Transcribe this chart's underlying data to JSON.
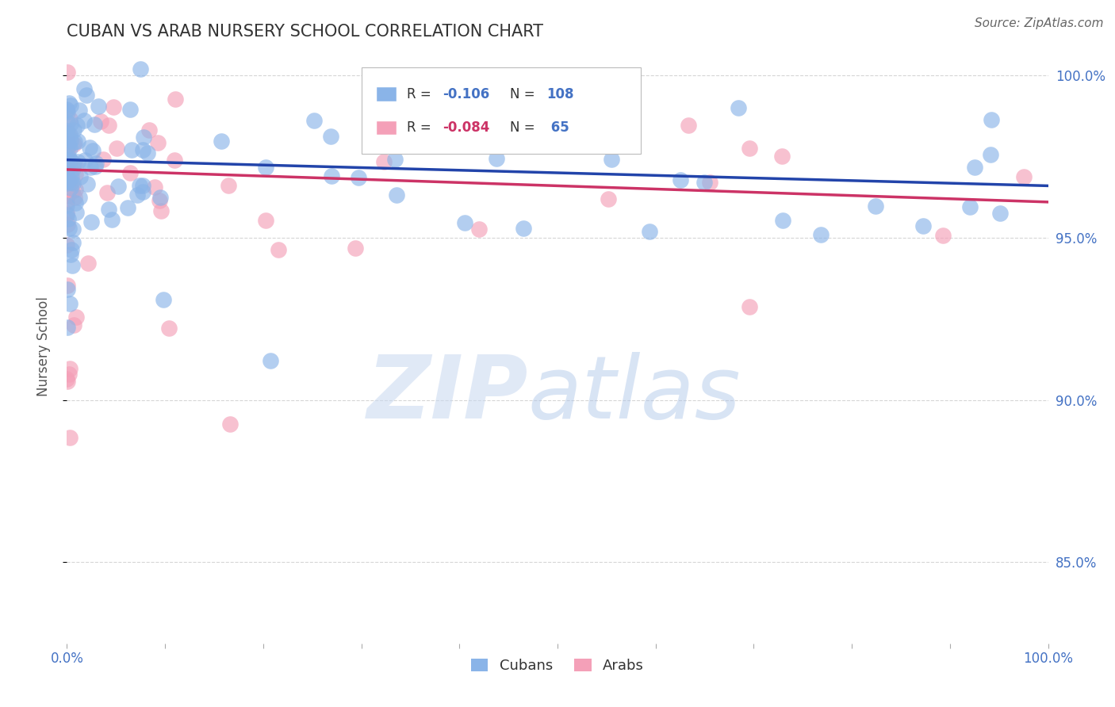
{
  "title": "CUBAN VS ARAB NURSERY SCHOOL CORRELATION CHART",
  "source": "Source: ZipAtlas.com",
  "ylabel": "Nursery School",
  "cubans_R": -0.106,
  "cubans_N": 108,
  "arabs_R": -0.084,
  "arabs_N": 65,
  "cuban_color": "#8ab4e8",
  "arab_color": "#f4a0b8",
  "cuban_line_color": "#2244aa",
  "arab_line_color": "#cc3366",
  "xmin": 0.0,
  "xmax": 1.0,
  "ymin": 0.825,
  "ymax": 1.008,
  "yticks": [
    0.85,
    0.9,
    0.95,
    1.0
  ],
  "ytick_labels": [
    "85.0%",
    "90.0%",
    "95.0%",
    "100.0%"
  ],
  "grid_color": "#cccccc",
  "background_color": "#ffffff",
  "title_color": "#333333",
  "right_label_color": "#4472c4",
  "cuban_intercept": 0.974,
  "cuban_slope": -0.008,
  "arab_intercept": 0.971,
  "arab_slope": -0.01
}
